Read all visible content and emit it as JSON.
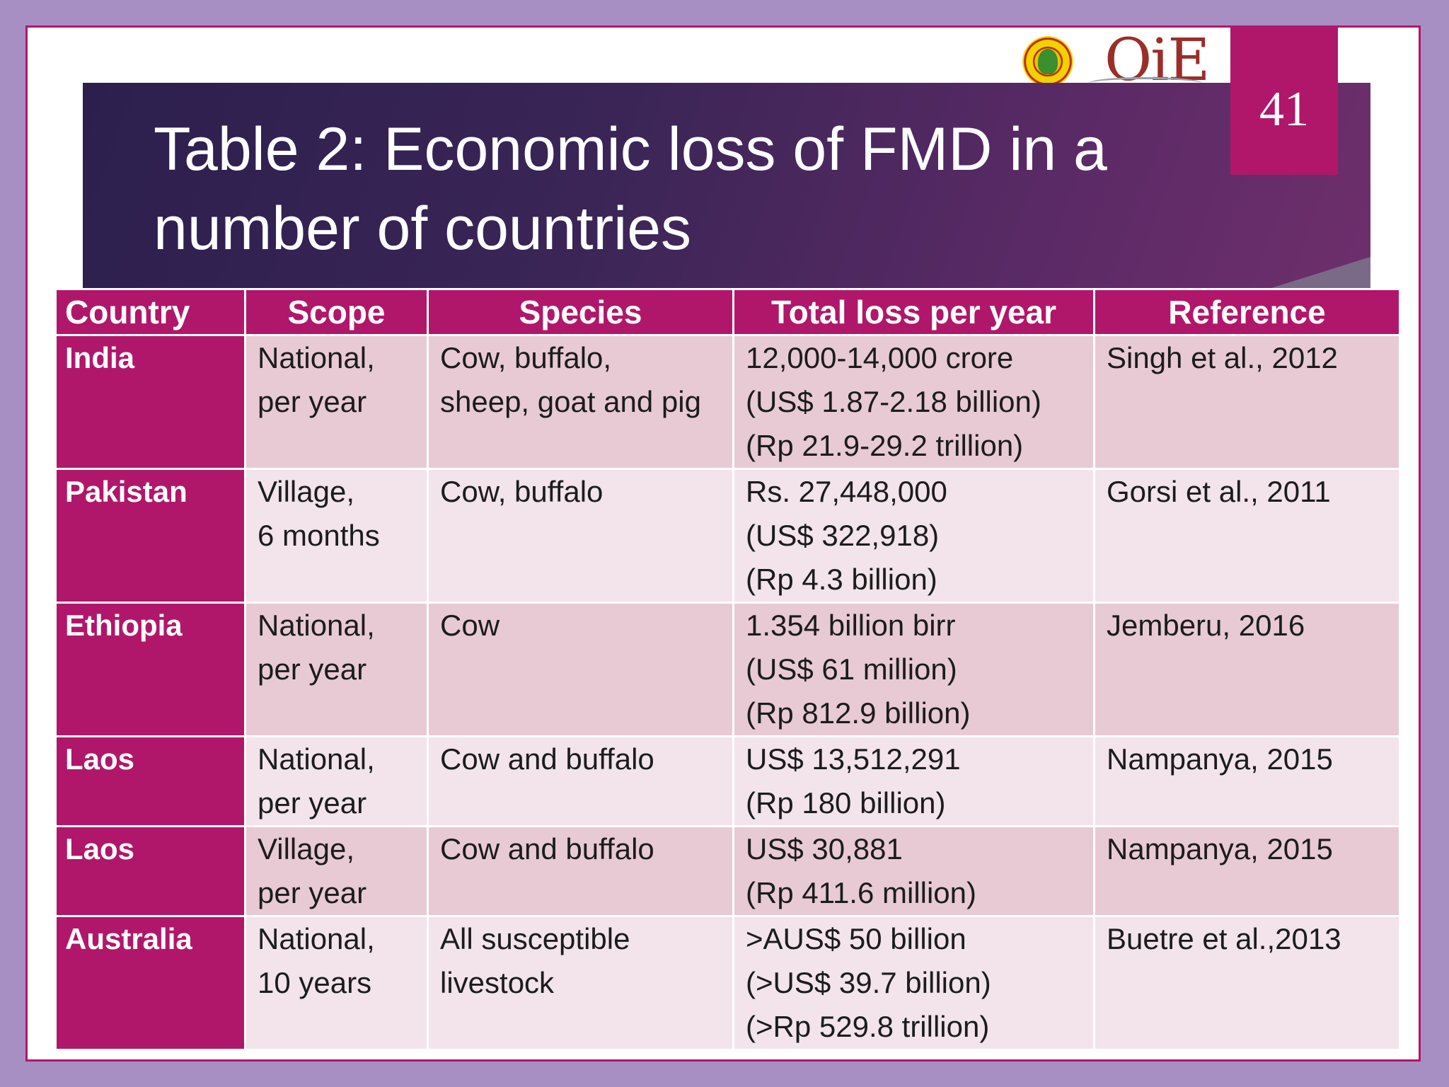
{
  "slide": {
    "title": "Table 2: Economic loss of FMD in a number of countries",
    "page_number": "41",
    "logos": [
      {
        "name": "ugm-seal",
        "icon": "university-seal-icon"
      },
      {
        "name": "oie",
        "text": "OiE",
        "icon": "oie-logo-icon"
      }
    ]
  },
  "colors": {
    "accent": "#b0176a",
    "banner": "#3a2556",
    "row_odd": "#e8cad4",
    "row_even": "#f2e4ea",
    "frame": "#a78fc4"
  },
  "table": {
    "headers": [
      "Country",
      "Scope",
      "Species",
      "Total loss per year",
      "Reference"
    ],
    "rows": [
      {
        "country": "India",
        "scope": [
          "National,",
          "per year"
        ],
        "species": [
          "Cow, buffalo,",
          "sheep, goat and pig"
        ],
        "loss": [
          "12,000-14,000 crore",
          "(US$ 1.87-2.18 billion)",
          "(Rp 21.9-29.2 trillion)"
        ],
        "reference": "Singh et al., 2012"
      },
      {
        "country": "Pakistan",
        "scope": [
          "Village,",
          "6 months"
        ],
        "species": [
          "Cow, buffalo",
          ""
        ],
        "loss": [
          "Rs. 27,448,000",
          "(US$ 322,918)",
          "(Rp 4.3 billion)"
        ],
        "reference": "Gorsi et al., 2011"
      },
      {
        "country": "Ethiopia",
        "scope": [
          "National,",
          "per year"
        ],
        "species": [
          "Cow",
          ""
        ],
        "loss": [
          "1.354 billion birr",
          "(US$ 61 million)",
          "(Rp 812.9 billion)"
        ],
        "reference": "Jemberu, 2016"
      },
      {
        "country": "Laos",
        "scope": [
          "National,",
          "per year"
        ],
        "species": [
          "Cow and buffalo",
          ""
        ],
        "loss": [
          "US$ 13,512,291",
          "(Rp 180 billion)",
          ""
        ],
        "reference": "Nampanya, 2015"
      },
      {
        "country": "Laos",
        "scope": [
          "Village,",
          "per year"
        ],
        "species": [
          "Cow and buffalo",
          ""
        ],
        "loss": [
          "US$ 30,881",
          "(Rp 411.6 million)",
          ""
        ],
        "reference": "Nampanya, 2015"
      },
      {
        "country": "Australia",
        "scope": [
          "National,",
          "10 years"
        ],
        "species": [
          "All susceptible",
          "livestock"
        ],
        "loss": [
          ">AUS$ 50 billion",
          "(>US$ 39.7 billion)",
          "(>Rp 529.8 trillion)"
        ],
        "reference": "Buetre et al.,2013"
      }
    ]
  }
}
